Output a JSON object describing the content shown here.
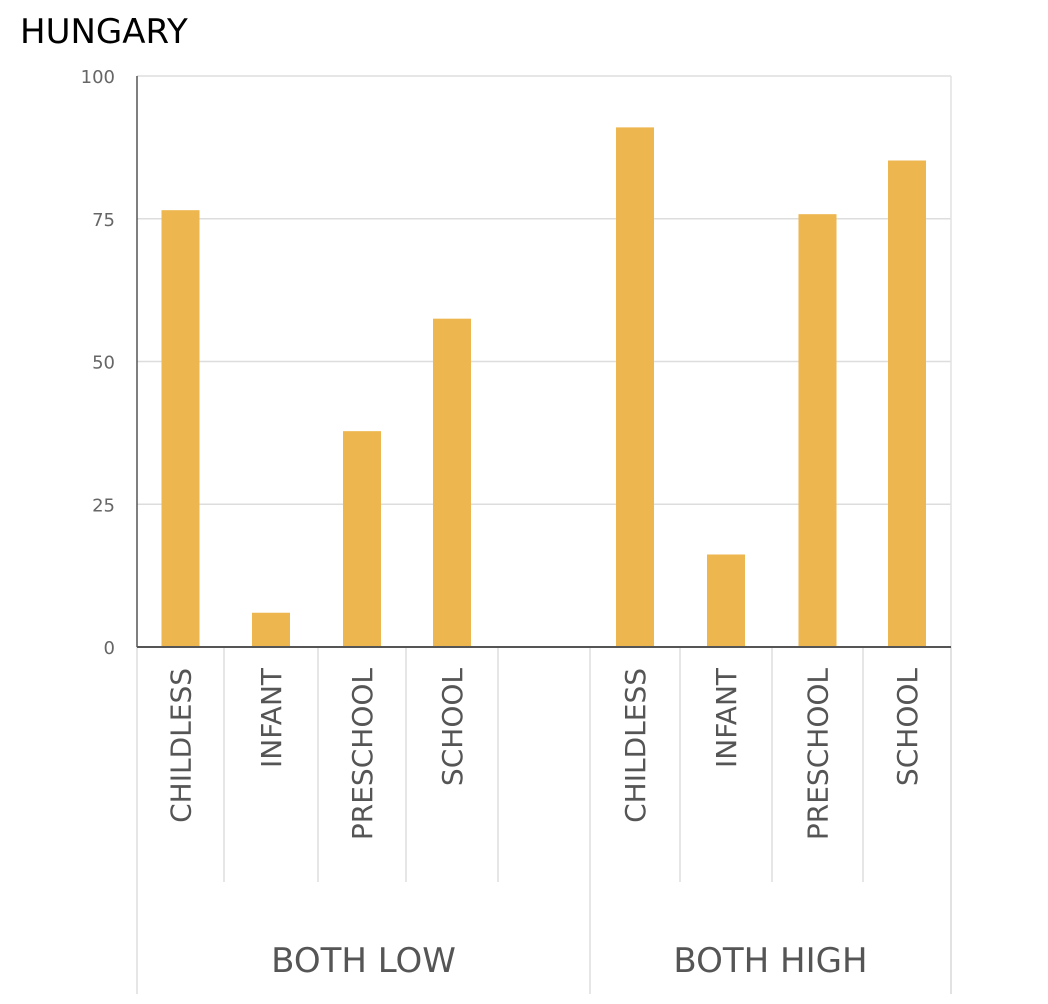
{
  "chart_data": {
    "type": "bar",
    "title": "HUNGARY",
    "ylim": [
      0,
      100
    ],
    "yticks": [
      0,
      25,
      50,
      75,
      100
    ],
    "grid": true,
    "bar_color": "#EDB64E",
    "groups": [
      {
        "label": "BOTH LOW",
        "categories": [
          "CHILDLESS",
          "INFANT",
          "PRESCHOOL",
          "SCHOOL"
        ],
        "values": [
          76.5,
          6,
          37.8,
          57.5
        ]
      },
      {
        "label": "BOTH HIGH",
        "categories": [
          "CHILDLESS",
          "INFANT",
          "PRESCHOOL",
          "SCHOOL"
        ],
        "values": [
          91,
          16.2,
          75.8,
          85.2
        ]
      }
    ]
  }
}
